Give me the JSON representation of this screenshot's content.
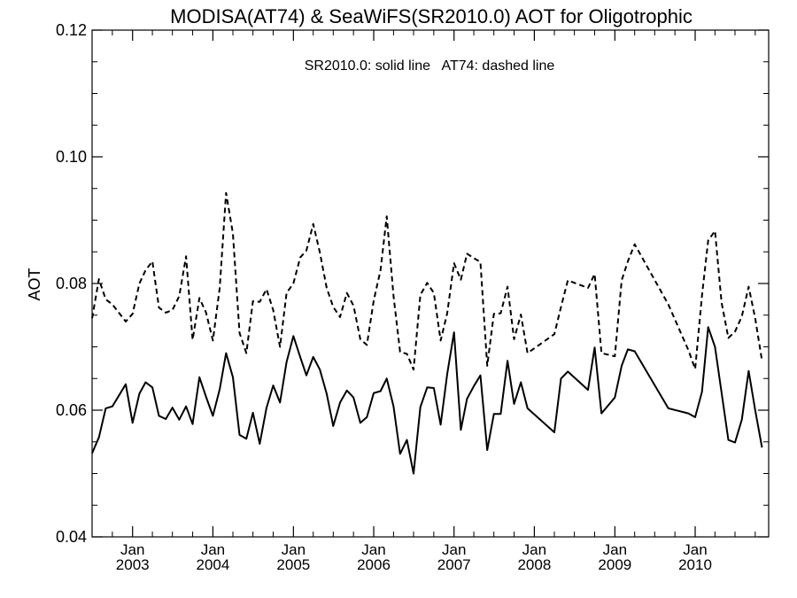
{
  "chart_data": {
    "type": "line",
    "title": "MODISA(AT74) & SeaWiFS(SR2010.0)  AOT for Oligotrophic",
    "annotation": "SR2010.0: solid line   AT74: dashed line",
    "xlabel": "",
    "ylabel": "AOT",
    "xlim": [
      "2002-07-01",
      "2010-12-01"
    ],
    "ylim": [
      0.04,
      0.12
    ],
    "yticks": [
      0.04,
      0.06,
      0.08,
      0.1,
      0.12
    ],
    "ytick_labels": [
      "0.04",
      "0.06",
      "0.08",
      "0.10",
      "0.12"
    ],
    "xticks": [
      {
        "date": "2003-01-01",
        "month": "Jan",
        "year": "2003"
      },
      {
        "date": "2004-01-01",
        "month": "Jan",
        "year": "2004"
      },
      {
        "date": "2005-01-01",
        "month": "Jan",
        "year": "2005"
      },
      {
        "date": "2006-01-01",
        "month": "Jan",
        "year": "2006"
      },
      {
        "date": "2007-01-01",
        "month": "Jan",
        "year": "2007"
      },
      {
        "date": "2008-01-01",
        "month": "Jan",
        "year": "2008"
      },
      {
        "date": "2009-01-01",
        "month": "Jan",
        "year": "2009"
      },
      {
        "date": "2010-01-01",
        "month": "Jan",
        "year": "2010"
      }
    ],
    "grid": false,
    "series": [
      {
        "name": "SR2010.0",
        "style": "solid",
        "color": "#000000",
        "points": [
          [
            "2002-07-01",
            0.0532
          ],
          [
            "2002-08-01",
            0.0557
          ],
          [
            "2002-09-01",
            0.0603
          ],
          [
            "2002-10-01",
            0.0606
          ],
          [
            "2002-12-01",
            0.0641
          ],
          [
            "2003-01-01",
            0.058
          ],
          [
            "2003-02-01",
            0.0626
          ],
          [
            "2003-03-01",
            0.0644
          ],
          [
            "2003-04-01",
            0.0636
          ],
          [
            "2003-05-01",
            0.0591
          ],
          [
            "2003-06-01",
            0.0586
          ],
          [
            "2003-07-01",
            0.0604
          ],
          [
            "2003-08-01",
            0.0585
          ],
          [
            "2003-09-01",
            0.0606
          ],
          [
            "2003-10-01",
            0.0578
          ],
          [
            "2003-11-01",
            0.0652
          ],
          [
            "2003-12-01",
            0.0621
          ],
          [
            "2004-01-01",
            0.0591
          ],
          [
            "2004-02-01",
            0.0633
          ],
          [
            "2004-03-01",
            0.069
          ],
          [
            "2004-04-01",
            0.0652
          ],
          [
            "2004-05-01",
            0.0561
          ],
          [
            "2004-06-01",
            0.0555
          ],
          [
            "2004-07-01",
            0.0596
          ],
          [
            "2004-08-01",
            0.0547
          ],
          [
            "2004-09-01",
            0.0604
          ],
          [
            "2004-10-01",
            0.0639
          ],
          [
            "2004-11-01",
            0.0612
          ],
          [
            "2004-12-01",
            0.0676
          ],
          [
            "2005-01-01",
            0.0717
          ],
          [
            "2005-02-01",
            0.0684
          ],
          [
            "2005-03-01",
            0.0655
          ],
          [
            "2005-04-01",
            0.0684
          ],
          [
            "2005-05-01",
            0.0664
          ],
          [
            "2005-06-01",
            0.0626
          ],
          [
            "2005-07-01",
            0.0575
          ],
          [
            "2005-08-01",
            0.0612
          ],
          [
            "2005-09-01",
            0.0631
          ],
          [
            "2005-10-01",
            0.062
          ],
          [
            "2005-11-01",
            0.058
          ],
          [
            "2005-12-01",
            0.0589
          ],
          [
            "2006-01-01",
            0.0627
          ],
          [
            "2006-02-01",
            0.063
          ],
          [
            "2006-03-01",
            0.065
          ],
          [
            "2006-04-01",
            0.0606
          ],
          [
            "2006-05-01",
            0.0531
          ],
          [
            "2006-06-01",
            0.0553
          ],
          [
            "2006-07-01",
            0.05
          ],
          [
            "2006-08-01",
            0.0605
          ],
          [
            "2006-09-01",
            0.0636
          ],
          [
            "2006-10-01",
            0.0635
          ],
          [
            "2006-11-01",
            0.0577
          ],
          [
            "2006-12-01",
            0.0657
          ],
          [
            "2007-01-01",
            0.0723
          ],
          [
            "2007-02-01",
            0.0569
          ],
          [
            "2007-03-01",
            0.0618
          ],
          [
            "2007-04-01",
            0.0638
          ],
          [
            "2007-05-01",
            0.0655
          ],
          [
            "2007-06-01",
            0.0537
          ],
          [
            "2007-07-01",
            0.0594
          ],
          [
            "2007-08-01",
            0.0594
          ],
          [
            "2007-09-01",
            0.0678
          ],
          [
            "2007-10-01",
            0.061
          ],
          [
            "2007-11-01",
            0.0644
          ],
          [
            "2007-12-01",
            0.0603
          ],
          [
            "2008-04-01",
            0.0565
          ],
          [
            "2008-05-01",
            0.065
          ],
          [
            "2008-06-01",
            0.0661
          ],
          [
            "2008-09-01",
            0.0632
          ],
          [
            "2008-10-01",
            0.0699
          ],
          [
            "2008-11-01",
            0.0595
          ],
          [
            "2009-01-01",
            0.062
          ],
          [
            "2009-02-01",
            0.067
          ],
          [
            "2009-03-01",
            0.0696
          ],
          [
            "2009-04-01",
            0.0693
          ],
          [
            "2009-09-01",
            0.0603
          ],
          [
            "2009-12-01",
            0.0595
          ],
          [
            "2010-01-01",
            0.0589
          ],
          [
            "2010-02-01",
            0.0629
          ],
          [
            "2010-03-01",
            0.0731
          ],
          [
            "2010-04-01",
            0.07
          ],
          [
            "2010-05-01",
            0.0628
          ],
          [
            "2010-06-01",
            0.0553
          ],
          [
            "2010-07-01",
            0.0549
          ],
          [
            "2010-08-01",
            0.0585
          ],
          [
            "2010-09-01",
            0.0662
          ],
          [
            "2010-10-01",
            0.06
          ],
          [
            "2010-11-01",
            0.0541
          ]
        ]
      },
      {
        "name": "AT74",
        "style": "dashed",
        "color": "#000000",
        "points": [
          [
            "2002-07-01",
            0.0745
          ],
          [
            "2002-08-01",
            0.0807
          ],
          [
            "2002-09-01",
            0.0775
          ],
          [
            "2002-10-01",
            0.0767
          ],
          [
            "2002-12-01",
            0.074
          ],
          [
            "2003-01-01",
            0.0752
          ],
          [
            "2003-02-01",
            0.08
          ],
          [
            "2003-03-01",
            0.0821
          ],
          [
            "2003-04-01",
            0.0835
          ],
          [
            "2003-05-01",
            0.0762
          ],
          [
            "2003-06-01",
            0.0754
          ],
          [
            "2003-07-01",
            0.0758
          ],
          [
            "2003-08-01",
            0.078
          ],
          [
            "2003-09-01",
            0.0843
          ],
          [
            "2003-10-01",
            0.0711
          ],
          [
            "2003-11-01",
            0.0777
          ],
          [
            "2003-12-01",
            0.0754
          ],
          [
            "2004-01-01",
            0.071
          ],
          [
            "2004-02-01",
            0.0793
          ],
          [
            "2004-03-01",
            0.0943
          ],
          [
            "2004-04-01",
            0.0879
          ],
          [
            "2004-05-01",
            0.0722
          ],
          [
            "2004-06-01",
            0.069
          ],
          [
            "2004-07-01",
            0.0772
          ],
          [
            "2004-08-01",
            0.0771
          ],
          [
            "2004-09-01",
            0.0791
          ],
          [
            "2004-10-01",
            0.0758
          ],
          [
            "2004-11-01",
            0.07
          ],
          [
            "2004-12-01",
            0.0785
          ],
          [
            "2005-01-01",
            0.08
          ],
          [
            "2005-02-01",
            0.0841
          ],
          [
            "2005-03-01",
            0.0852
          ],
          [
            "2005-04-01",
            0.0894
          ],
          [
            "2005-05-01",
            0.0849
          ],
          [
            "2005-06-01",
            0.0793
          ],
          [
            "2005-07-01",
            0.0763
          ],
          [
            "2005-08-01",
            0.0747
          ],
          [
            "2005-09-01",
            0.0785
          ],
          [
            "2005-10-01",
            0.0765
          ],
          [
            "2005-11-01",
            0.0712
          ],
          [
            "2005-12-01",
            0.0703
          ],
          [
            "2006-01-01",
            0.0773
          ],
          [
            "2006-02-01",
            0.0821
          ],
          [
            "2006-03-01",
            0.0906
          ],
          [
            "2006-04-01",
            0.078
          ],
          [
            "2006-05-01",
            0.0692
          ],
          [
            "2006-06-01",
            0.0689
          ],
          [
            "2006-07-01",
            0.0664
          ],
          [
            "2006-08-01",
            0.0782
          ],
          [
            "2006-09-01",
            0.0801
          ],
          [
            "2006-10-01",
            0.0785
          ],
          [
            "2006-11-01",
            0.071
          ],
          [
            "2006-12-01",
            0.0753
          ],
          [
            "2007-01-01",
            0.0832
          ],
          [
            "2007-02-01",
            0.0806
          ],
          [
            "2007-03-01",
            0.0847
          ],
          [
            "2007-04-01",
            0.084
          ],
          [
            "2007-05-01",
            0.0834
          ],
          [
            "2007-06-01",
            0.067
          ],
          [
            "2007-07-01",
            0.0752
          ],
          [
            "2007-08-01",
            0.0753
          ],
          [
            "2007-09-01",
            0.0795
          ],
          [
            "2007-10-01",
            0.0712
          ],
          [
            "2007-11-01",
            0.0751
          ],
          [
            "2007-12-01",
            0.069
          ],
          [
            "2008-04-01",
            0.072
          ],
          [
            "2008-05-01",
            0.0763
          ],
          [
            "2008-06-01",
            0.0805
          ],
          [
            "2008-09-01",
            0.0793
          ],
          [
            "2008-10-01",
            0.0815
          ],
          [
            "2008-11-01",
            0.069
          ],
          [
            "2009-01-01",
            0.0685
          ],
          [
            "2009-02-01",
            0.0805
          ],
          [
            "2009-03-01",
            0.0835
          ],
          [
            "2009-04-01",
            0.0862
          ],
          [
            "2009-09-01",
            0.0767
          ],
          [
            "2009-12-01",
            0.0695
          ],
          [
            "2010-01-01",
            0.0665
          ],
          [
            "2010-02-01",
            0.0781
          ],
          [
            "2010-03-01",
            0.0868
          ],
          [
            "2010-04-01",
            0.0883
          ],
          [
            "2010-05-01",
            0.077
          ],
          [
            "2010-06-01",
            0.0714
          ],
          [
            "2010-07-01",
            0.0724
          ],
          [
            "2010-08-01",
            0.0748
          ],
          [
            "2010-09-01",
            0.0795
          ],
          [
            "2010-10-01",
            0.0745
          ],
          [
            "2010-11-01",
            0.0678
          ]
        ]
      }
    ]
  }
}
